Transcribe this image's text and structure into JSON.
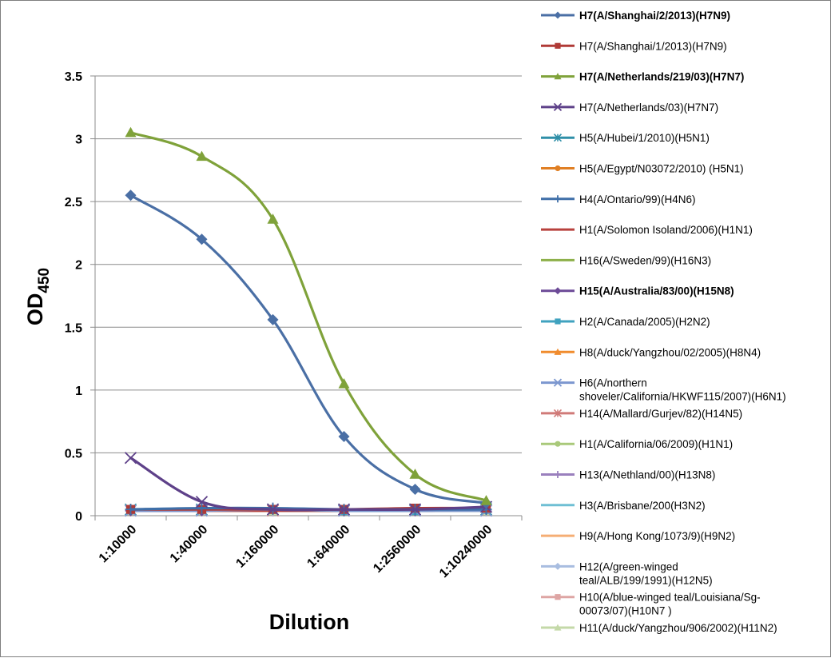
{
  "chart_data": {
    "type": "line",
    "xlabel": "Dilution",
    "ylabel": "OD",
    "ylabel_subscript": "450",
    "categories": [
      "1:10000",
      "1:40000",
      "1:160000",
      "1:640000",
      "1:2560000",
      "1:10240000"
    ],
    "ylim": [
      0,
      3.5
    ],
    "yticks": [
      "0",
      "0.5",
      "1",
      "1.5",
      "2",
      "2.5",
      "3",
      "3.5"
    ],
    "grid": true,
    "legend_position": "right",
    "series": [
      {
        "name": "H7(A/Shanghai/2/2013)(H7N9)",
        "lines": [
          "H7(A/Shanghai/2/2013)(H7N9)"
        ],
        "bold": true,
        "color": "#4a6fa5",
        "marker": "diamond",
        "values": [
          2.55,
          2.2,
          1.56,
          0.63,
          0.21,
          0.1
        ]
      },
      {
        "name": "H7(A/Shanghai/1/2013)(H7N9)",
        "lines": [
          "H7(A/Shanghai/1/2013)(H7N9)"
        ],
        "bold": false,
        "color": "#b03a36",
        "marker": "square",
        "values": [
          0.05,
          0.05,
          0.05,
          0.05,
          0.06,
          0.06
        ]
      },
      {
        "name": "H7(A/Netherlands/219/03)(H7N7)",
        "lines": [
          "H7(A/Netherlands/219/03)(H7N7)"
        ],
        "bold": true,
        "color": "#7fa23a",
        "marker": "triangle",
        "values": [
          3.05,
          2.86,
          2.36,
          1.05,
          0.33,
          0.12
        ]
      },
      {
        "name": "H7(A/Netherlands/03)(H7N7)",
        "lines": [
          "H7(A/Netherlands/03)(H7N7)"
        ],
        "bold": false,
        "color": "#5e4189",
        "marker": "x",
        "values": [
          0.46,
          0.11,
          0.05,
          0.05,
          0.05,
          0.07
        ]
      },
      {
        "name": "H5(A/Hubei/1/2010)(H5N1)",
        "lines": [
          "H5(A/Hubei/1/2010)(H5N1)"
        ],
        "bold": false,
        "color": "#2f8fa8",
        "marker": "star",
        "values": [
          0.05,
          0.05,
          0.05,
          0.04,
          0.05,
          0.05
        ]
      },
      {
        "name": "H5(A/Egypt/N03072/2010) (H5N1)",
        "lines": [
          "H5(A/Egypt/N03072/2010) (H5N1)"
        ],
        "bold": false,
        "color": "#e07f24",
        "marker": "circle",
        "values": [
          0.05,
          0.05,
          0.05,
          0.04,
          0.04,
          0.05
        ]
      },
      {
        "name": "H4(A/Ontario/99)(H4N6)",
        "lines": [
          "H4(A/Ontario/99)(H4N6)"
        ],
        "bold": false,
        "color": "#3f6fa8",
        "marker": "plus",
        "values": [
          0.05,
          0.06,
          0.06,
          0.05,
          0.05,
          0.05
        ]
      },
      {
        "name": "H1(A/Solomon Isoland/2006)(H1N1)",
        "lines": [
          "H1(A/Solomon Isoland/2006)(H1N1)"
        ],
        "bold": false,
        "color": "#b8413d",
        "marker": "none",
        "values": [
          0.04,
          0.04,
          0.04,
          0.04,
          0.04,
          0.05
        ]
      },
      {
        "name": "H16(A/Sweden/99)(H16N3)",
        "lines": [
          "H16(A/Sweden/99)(H16N3)"
        ],
        "bold": false,
        "color": "#8db04a",
        "marker": "none",
        "values": [
          0.04,
          0.04,
          0.04,
          0.04,
          0.04,
          0.04
        ]
      },
      {
        "name": "H15(A/Australia/83/00)(H15N8)",
        "lines": [
          "H15(A/Australia/83/00)(H15N8)"
        ],
        "bold": true,
        "color": "#6c4a97",
        "marker": "diamond",
        "values": [
          0.04,
          0.04,
          0.05,
          0.04,
          0.04,
          0.05
        ]
      },
      {
        "name": "H2(A/Canada/2005)(H2N2)",
        "lines": [
          "H2(A/Canada/2005)(H2N2)"
        ],
        "bold": false,
        "color": "#3fa2bf",
        "marker": "square",
        "values": [
          0.05,
          0.05,
          0.05,
          0.04,
          0.04,
          0.05
        ]
      },
      {
        "name": "H8(A/duck/Yangzhou/02/2005)(H8N4)",
        "lines": [
          "H8(A/duck/Yangzhou/02/2005)(H8N4)"
        ],
        "bold": false,
        "color": "#f08c2e",
        "marker": "triangle",
        "values": [
          0.04,
          0.04,
          0.04,
          0.04,
          0.04,
          0.04
        ]
      },
      {
        "name": "H6(A/northern shoveler/California/HKWF115/2007)(H6N1)",
        "lines": [
          "H6(A/northern",
          "shoveler/California/HKWF115/2007)(H6N1)"
        ],
        "bold": false,
        "color": "#7c97cf",
        "marker": "x",
        "values": [
          0.04,
          0.04,
          0.05,
          0.04,
          0.04,
          0.04
        ]
      },
      {
        "name": "H14(A/Mallard/Gurjev/82)(H14N5)",
        "lines": [
          "H14(A/Mallard/Gurjev/82)(H14N5)"
        ],
        "bold": false,
        "color": "#d07a78",
        "marker": "star",
        "values": [
          0.04,
          0.04,
          0.04,
          0.04,
          0.04,
          0.04
        ]
      },
      {
        "name": "H1(A/California/06/2009)(H1N1)",
        "lines": [
          "H1(A/California/06/2009)(H1N1)"
        ],
        "bold": false,
        "color": "#a9c97a",
        "marker": "circle",
        "values": [
          0.04,
          0.04,
          0.04,
          0.04,
          0.04,
          0.04
        ]
      },
      {
        "name": "H13(A/Nethland/00)(H13N8)",
        "lines": [
          "H13(A/Nethland/00)(H13N8)"
        ],
        "bold": false,
        "color": "#9a80bd",
        "marker": "plus",
        "values": [
          0.04,
          0.04,
          0.04,
          0.04,
          0.04,
          0.04
        ]
      },
      {
        "name": "H3(A/Brisbane/200(H3N2)",
        "lines": [
          "H3(A/Brisbane/200(H3N2)"
        ],
        "bold": false,
        "color": "#6fbfd4",
        "marker": "none",
        "values": [
          0.04,
          0.04,
          0.04,
          0.04,
          0.04,
          0.04
        ]
      },
      {
        "name": "H9(A/Hong Kong/1073/9)(H9N2)",
        "lines": [
          "H9(A/Hong Kong/1073/9)(H9N2)"
        ],
        "bold": false,
        "color": "#f5ae74",
        "marker": "none",
        "values": [
          0.04,
          0.04,
          0.04,
          0.04,
          0.04,
          0.04
        ]
      },
      {
        "name": "H12(A/green-winged teal/ALB/199/1991)(H12N5)",
        "lines": [
          "H12(A/green-winged",
          "teal/ALB/199/1991)(H12N5)"
        ],
        "bold": false,
        "color": "#a8bde0",
        "marker": "diamond",
        "values": [
          0.04,
          0.04,
          0.04,
          0.04,
          0.04,
          0.04
        ]
      },
      {
        "name": "H10(A/blue-winged teal/Louisiana/Sg-00073/07)(H10N7 )",
        "lines": [
          "H10(A/blue-winged teal/Louisiana/Sg-",
          "00073/07)(H10N7 )"
        ],
        "bold": false,
        "color": "#dea5a4",
        "marker": "square",
        "values": [
          0.04,
          0.04,
          0.04,
          0.04,
          0.04,
          0.04
        ]
      },
      {
        "name": "H11(A/duck/Yangzhou/906/2002)(H11N2)",
        "lines": [
          "H11(A/duck/Yangzhou/906/2002)(H11N2)"
        ],
        "bold": false,
        "color": "#c4d9a8",
        "marker": "triangle",
        "values": [
          0.04,
          0.04,
          0.04,
          0.04,
          0.04,
          0.04
        ]
      }
    ]
  }
}
